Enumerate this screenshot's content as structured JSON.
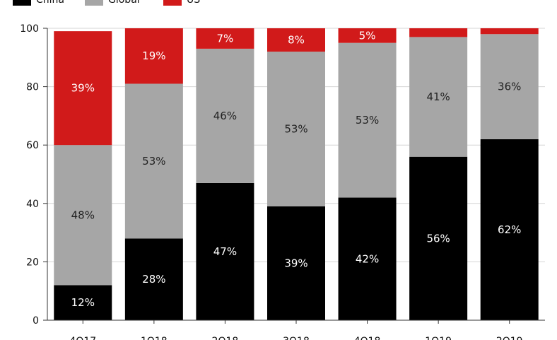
{
  "chart_data": {
    "type": "bar",
    "stacked": true,
    "title": "",
    "xlabel": "",
    "ylabel": "",
    "ylim": [
      0,
      100
    ],
    "yticks": [
      0,
      20,
      40,
      60,
      80,
      100
    ],
    "grid": "horizontal",
    "legend_position": "top-left",
    "categories": [
      "4Q17",
      "1Q18",
      "2Q18",
      "3Q18",
      "4Q18",
      "1Q19",
      "2Q19"
    ],
    "series": [
      {
        "name": "China",
        "color": "#000000",
        "label_color": "#ffffff",
        "values": [
          12,
          28,
          47,
          39,
          42,
          56,
          62
        ],
        "labels": [
          "12%",
          "28%",
          "47%",
          "39%",
          "42%",
          "56%",
          "62%"
        ]
      },
      {
        "name": "Global",
        "color": "#a6a6a6",
        "label_color": "#222222",
        "values": [
          48,
          53,
          46,
          53,
          53,
          41,
          36
        ],
        "labels": [
          "48%",
          "53%",
          "46%",
          "53%",
          "53%",
          "41%",
          "36%"
        ]
      },
      {
        "name": "US",
        "color": "#d11a1a",
        "label_color": "#ffffff",
        "values": [
          39,
          19,
          7,
          8,
          5,
          3,
          3
        ],
        "labels": [
          "39%",
          "19%",
          "7%",
          "8%",
          "5%",
          "",
          ""
        ]
      }
    ]
  }
}
